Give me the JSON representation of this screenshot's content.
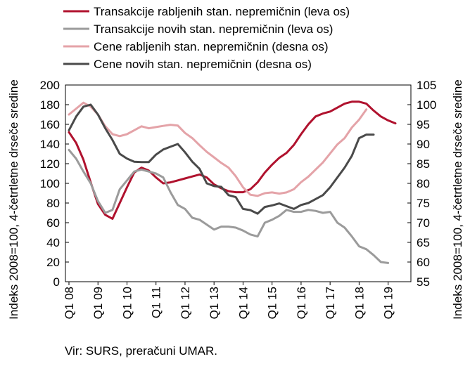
{
  "chart_data": {
    "type": "line",
    "x_labels": [
      "Q1 08",
      "Q1 09",
      "Q1 10",
      "Q1 11",
      "Q1 12",
      "Q1 13",
      "Q1 14",
      "Q1 15",
      "Q1 16",
      "Q1 17",
      "Q1 18",
      "Q1 19"
    ],
    "left_axis": {
      "label": "Indeks 2008=100, 4-četrtletne drseče sredine",
      "ylim": [
        0,
        200
      ],
      "ticks": [
        "0",
        "20",
        "40",
        "60",
        "80",
        "100",
        "120",
        "140",
        "160",
        "180",
        "200"
      ]
    },
    "right_axis": {
      "label": "Indeks 2008=100, 4-četrtletne drseče sredine",
      "ylim": [
        55,
        105
      ],
      "ticks": [
        "55",
        "60",
        "65",
        "70",
        "75",
        "80",
        "85",
        "90",
        "95",
        "100",
        "105"
      ]
    },
    "grid": false,
    "legend_position": "top",
    "series": [
      {
        "name": "Transakcije rabljenih stan. nepremičnin (leva os)",
        "axis": "left",
        "color": "#b0122e",
        "values": [
          152,
          141,
          124,
          101,
          79,
          68,
          64,
          80,
          96,
          111,
          116,
          113,
          106,
          100,
          101,
          103,
          105,
          107,
          109,
          106,
          99,
          95,
          92,
          91,
          91,
          94,
          101,
          111,
          119,
          126,
          131,
          139,
          150,
          160,
          168,
          171,
          173,
          177,
          181,
          183,
          183,
          181,
          174,
          168,
          164,
          161
        ]
      },
      {
        "name": "Transakcije novih stan. nepremičnin (leva os)",
        "axis": "left",
        "color": "#9b9b9b",
        "values": [
          134,
          125,
          112,
          100,
          82,
          70,
          73,
          94,
          103,
          112,
          114,
          112,
          110,
          106,
          91,
          78,
          74,
          65,
          63,
          58,
          53,
          56,
          56,
          55,
          52,
          48,
          46,
          60,
          63,
          67,
          73,
          71,
          71,
          73,
          72,
          70,
          71,
          60,
          55,
          46,
          36,
          33,
          27,
          20,
          19
        ]
      },
      {
        "name": "Cene rabljenih stan. nepremičnin (desna os)",
        "axis": "right",
        "color": "#e4a3a8",
        "values": [
          97.5,
          99,
          100.5,
          99.5,
          97.5,
          94.5,
          92.5,
          92,
          92.5,
          93.5,
          94.5,
          94,
          94.3,
          94.6,
          94.9,
          94.7,
          92.8,
          91.5,
          89.7,
          88,
          86.6,
          85.2,
          84,
          81.8,
          79,
          77.1,
          76.8,
          77.5,
          77.7,
          77.4,
          77.7,
          78.5,
          80.3,
          81.7,
          83.5,
          85.3,
          87.6,
          89.9,
          91.5,
          94.2,
          96.2,
          98.8
        ]
      },
      {
        "name": "Cene novih stan. nepremičnin (desna os)",
        "axis": "right",
        "color": "#4a4a4a",
        "values": [
          93.5,
          97,
          99.5,
          100,
          97.5,
          94,
          91,
          87.5,
          86.3,
          85.5,
          85.4,
          85.4,
          87.3,
          88.6,
          89.3,
          90,
          87.9,
          85.5,
          83.7,
          80,
          79.3,
          79.1,
          77,
          76.5,
          73.5,
          73.2,
          72.3,
          74,
          74.4,
          74.9,
          74.2,
          73.5,
          74.5,
          75,
          76,
          77,
          79,
          81.5,
          84,
          87,
          91.5,
          92.4,
          92.4
        ]
      }
    ]
  },
  "footer": {
    "source": "Vir: SURS, preračuni UMAR."
  }
}
